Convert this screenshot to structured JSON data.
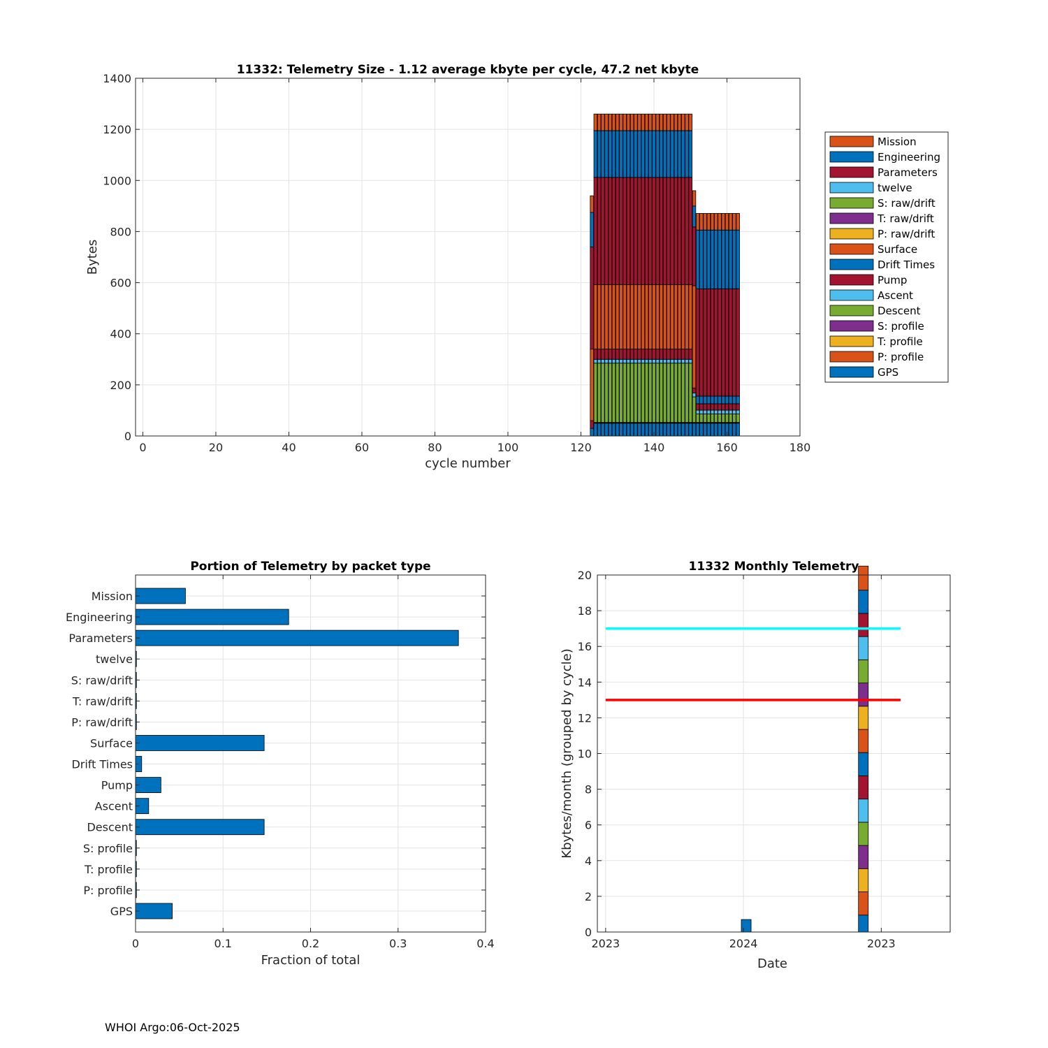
{
  "footer_text": "WHOI Argo:06-Oct-2025",
  "chart_data": [
    {
      "type": "bar",
      "stacked": true,
      "title": "11332: Telemetry Size - 1.12 average kbyte per cycle,   47.2 net kbyte",
      "xlabel": "cycle number",
      "ylabel": "Bytes",
      "xlim": [
        -2,
        180
      ],
      "ylim": [
        0,
        1400
      ],
      "xticks": [
        0,
        20,
        40,
        60,
        80,
        100,
        120,
        140,
        160,
        180
      ],
      "yticks": [
        0,
        200,
        400,
        600,
        800,
        1000,
        1200,
        1400
      ],
      "grid": true,
      "legend_position": "right",
      "legend": [
        "Mission",
        "Engineering",
        "Parameters",
        "twelve",
        "S: raw/drift",
        "T: raw/drift",
        "P: raw/drift",
        "Surface",
        "Drift Times",
        "Pump",
        "Ascent",
        "Descent",
        "S: profile",
        "T: profile",
        "P: profile",
        "GPS"
      ],
      "legend_colors": [
        "#D95319",
        "#0072BD",
        "#A2142F",
        "#4DBEEE",
        "#77AC30",
        "#7E2F8E",
        "#EDB120",
        "#D95319",
        "#0072BD",
        "#A2142F",
        "#4DBEEE",
        "#77AC30",
        "#7E2F8E",
        "#EDB120",
        "#D95319",
        "#0072BD"
      ],
      "stack_order_bottom_to_top": [
        "GPS",
        "P: profile",
        "T: profile",
        "S: profile",
        "Descent",
        "Ascent",
        "Pump",
        "Drift Times",
        "Surface",
        "P: raw/drift",
        "T: raw/drift",
        "S: raw/drift",
        "twelve",
        "Parameters",
        "Engineering",
        "Mission"
      ],
      "cycle_groups": [
        {
          "cycles": [
            123,
            123
          ],
          "values": {
            "GPS": 30,
            "P: profile": 0,
            "T: profile": 0,
            "S: profile": 0,
            "Descent": 0,
            "Ascent": 0,
            "Pump": 30,
            "Drift Times": 0,
            "Surface": 280,
            "P: raw/drift": 0,
            "T: raw/drift": 0,
            "S: raw/drift": 0,
            "twelve": 0,
            "Parameters": 400,
            "Engineering": 135,
            "Mission": 65
          }
        },
        {
          "cycles": [
            124,
            150
          ],
          "values": {
            "GPS": 50,
            "P: profile": 1,
            "T: profile": 1,
            "S: profile": 1,
            "Descent": 232,
            "Ascent": 15,
            "Pump": 40,
            "Drift Times": 0,
            "Surface": 252,
            "P: raw/drift": 0,
            "T: raw/drift": 0,
            "S: raw/drift": 0,
            "twelve": 0,
            "Parameters": 420,
            "Engineering": 183,
            "Mission": 65
          }
        },
        {
          "cycles": [
            151,
            151
          ],
          "values": {
            "GPS": 50,
            "P: profile": 1,
            "T: profile": 1,
            "S: profile": 1,
            "Descent": 100,
            "Ascent": 15,
            "Pump": 20,
            "Drift Times": 0,
            "Surface": 400,
            "P: raw/drift": 0,
            "T: raw/drift": 0,
            "S: raw/drift": 0,
            "twelve": 0,
            "Parameters": 230,
            "Engineering": 82,
            "Mission": 60
          }
        },
        {
          "cycles": [
            152,
            163
          ],
          "values": {
            "GPS": 50,
            "P: profile": 1,
            "T: profile": 1,
            "S: profile": 1,
            "Descent": 33,
            "Ascent": 15,
            "Pump": 25,
            "Drift Times": 30,
            "Surface": 0,
            "P: raw/drift": 0,
            "T: raw/drift": 0,
            "S: raw/drift": 0,
            "twelve": 0,
            "Parameters": 420,
            "Engineering": 230,
            "Mission": 65
          }
        }
      ]
    },
    {
      "type": "bar",
      "orientation": "horizontal",
      "title": "Portion of Telemetry by packet type",
      "xlabel": "Fraction of total",
      "ylabel": "",
      "xlim": [
        0,
        0.4
      ],
      "xticks": [
        0,
        0.1,
        0.2,
        0.3,
        0.4
      ],
      "xtick_labels": [
        "0",
        "0.1",
        "0.2",
        "0.3",
        "0.4"
      ],
      "grid": true,
      "color": "#0072BD",
      "categories": [
        "Mission",
        "Engineering",
        "Parameters",
        "twelve",
        "S: raw/drift",
        "T: raw/drift",
        "P: raw/drift",
        "Surface",
        "Drift Times",
        "Pump",
        "Ascent",
        "Descent",
        "S: profile",
        "T: profile",
        "P: profile",
        "GPS"
      ],
      "values": [
        0.057,
        0.175,
        0.369,
        0.001,
        0.001,
        0.001,
        0.001,
        0.147,
        0.007,
        0.029,
        0.015,
        0.147,
        0.001,
        0.001,
        0.001,
        0.042
      ]
    },
    {
      "type": "bar",
      "stacked": true,
      "title": "11332 Monthly Telemetry",
      "xlabel": "Date",
      "ylabel": "Kbytes/month (grouped by cycle)",
      "xlim": [
        -0.03,
        1.25
      ],
      "ylim": [
        0,
        20
      ],
      "yticks": [
        0,
        2,
        4,
        6,
        8,
        10,
        12,
        14,
        16,
        18,
        20
      ],
      "xticks": [
        0,
        0.5,
        1
      ],
      "xtick_labels": [
        "2023",
        "2024",
        "2023"
      ],
      "grid": true,
      "reference_lines": [
        {
          "y": 17,
          "color": "#00FFFF"
        },
        {
          "y": 13,
          "color": "#FF0000"
        }
      ],
      "bars": [
        {
          "x": 0.51,
          "segments": [
            0.7
          ],
          "colors": [
            "#0072BD"
          ]
        },
        {
          "x": 0.935,
          "segments": [
            0.95,
            1.3,
            1.3,
            1.3,
            1.3,
            1.3,
            1.3,
            1.3,
            1.3,
            1.3,
            1.3,
            1.3,
            1.3,
            1.3,
            1.3,
            1.35
          ],
          "colors": [
            "#0072BD",
            "#D95319",
            "#EDB120",
            "#7E2F8E",
            "#77AC30",
            "#4DBEEE",
            "#A2142F",
            "#0072BD",
            "#D95319",
            "#EDB120",
            "#7E2F8E",
            "#77AC30",
            "#4DBEEE",
            "#A2142F",
            "#0072BD",
            "#D95319"
          ]
        }
      ]
    }
  ]
}
